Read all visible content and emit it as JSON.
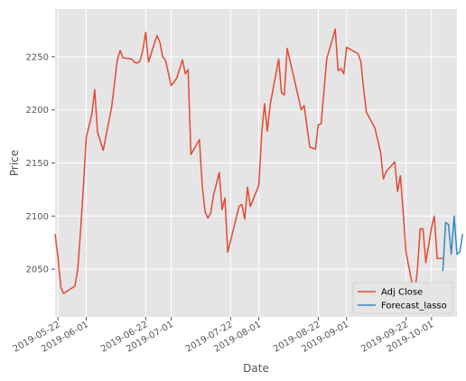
{
  "chart_data": {
    "type": "line",
    "title": "",
    "xlabel": "Date",
    "ylabel": "Price",
    "x_range": [
      "2019-05-21",
      "2019-10-10"
    ],
    "ylim": [
      2005,
      2295
    ],
    "grid": true,
    "legend_position": "lower-right",
    "x_ticks": [
      "2019-05-22",
      "2019-06-01",
      "2019-06-22",
      "2019-07-01",
      "2019-07-22",
      "2019-08-01",
      "2019-08-22",
      "2019-09-01",
      "2019-09-22",
      "2019-10-01"
    ],
    "y_ticks": [
      2050,
      2100,
      2150,
      2200,
      2250
    ],
    "series": [
      {
        "name": "Adj Close",
        "color": "#E24A33",
        "points": [
          [
            "2019-05-21",
            2083
          ],
          [
            "2019-05-22",
            2062
          ],
          [
            "2019-05-23",
            2033
          ],
          [
            "2019-05-24",
            2027
          ],
          [
            "2019-05-28",
            2034
          ],
          [
            "2019-05-29",
            2050
          ],
          [
            "2019-05-30",
            2086
          ],
          [
            "2019-05-31",
            2127
          ],
          [
            "2019-06-01",
            2174
          ],
          [
            "2019-06-03",
            2196
          ],
          [
            "2019-06-04",
            2219
          ],
          [
            "2019-06-05",
            2179
          ],
          [
            "2019-06-07",
            2162
          ],
          [
            "2019-06-10",
            2203
          ],
          [
            "2019-06-11",
            2225
          ],
          [
            "2019-06-12",
            2247
          ],
          [
            "2019-06-13",
            2256
          ],
          [
            "2019-06-14",
            2249
          ],
          [
            "2019-06-17",
            2248
          ],
          [
            "2019-06-18",
            2245
          ],
          [
            "2019-06-19",
            2244
          ],
          [
            "2019-06-20",
            2246
          ],
          [
            "2019-06-21",
            2256
          ],
          [
            "2019-06-22",
            2273
          ],
          [
            "2019-06-23",
            2245
          ],
          [
            "2019-06-26",
            2270
          ],
          [
            "2019-06-27",
            2264
          ],
          [
            "2019-06-28",
            2250
          ],
          [
            "2019-06-29",
            2247
          ],
          [
            "2019-07-01",
            2223
          ],
          [
            "2019-07-02",
            2226
          ],
          [
            "2019-07-03",
            2230
          ],
          [
            "2019-07-05",
            2247
          ],
          [
            "2019-07-06",
            2234
          ],
          [
            "2019-07-07",
            2238
          ],
          [
            "2019-07-08",
            2158
          ],
          [
            "2019-07-11",
            2172
          ],
          [
            "2019-07-12",
            2128
          ],
          [
            "2019-07-13",
            2104
          ],
          [
            "2019-07-14",
            2098
          ],
          [
            "2019-07-15",
            2103
          ],
          [
            "2019-07-16",
            2120
          ],
          [
            "2019-07-17",
            2130
          ],
          [
            "2019-07-18",
            2141
          ],
          [
            "2019-07-19",
            2106
          ],
          [
            "2019-07-20",
            2117
          ],
          [
            "2019-07-21",
            2066
          ],
          [
            "2019-07-25",
            2109
          ],
          [
            "2019-07-26",
            2111
          ],
          [
            "2019-07-27",
            2097
          ],
          [
            "2019-07-28",
            2127
          ],
          [
            "2019-07-29",
            2109
          ],
          [
            "2019-08-01",
            2129
          ],
          [
            "2019-08-02",
            2178
          ],
          [
            "2019-08-03",
            2206
          ],
          [
            "2019-08-04",
            2180
          ],
          [
            "2019-08-05",
            2205
          ],
          [
            "2019-08-08",
            2248
          ],
          [
            "2019-08-09",
            2216
          ],
          [
            "2019-08-10",
            2214
          ],
          [
            "2019-08-11",
            2258
          ],
          [
            "2019-08-16",
            2200
          ],
          [
            "2019-08-17",
            2204
          ],
          [
            "2019-08-19",
            2165
          ],
          [
            "2019-08-21",
            2163
          ],
          [
            "2019-08-22",
            2186
          ],
          [
            "2019-08-23",
            2187
          ],
          [
            "2019-08-25",
            2248
          ],
          [
            "2019-08-28",
            2276
          ],
          [
            "2019-08-29",
            2237
          ],
          [
            "2019-08-30",
            2239
          ],
          [
            "2019-08-31",
            2234
          ],
          [
            "2019-09-01",
            2259
          ],
          [
            "2019-09-05",
            2253
          ],
          [
            "2019-09-06",
            2246
          ],
          [
            "2019-09-07",
            2220
          ],
          [
            "2019-09-08",
            2198
          ],
          [
            "2019-09-11",
            2183
          ],
          [
            "2019-09-13",
            2160
          ],
          [
            "2019-09-14",
            2135
          ],
          [
            "2019-09-15",
            2142
          ],
          [
            "2019-09-18",
            2151
          ],
          [
            "2019-09-19",
            2123
          ],
          [
            "2019-09-20",
            2138
          ],
          [
            "2019-09-21",
            2103
          ],
          [
            "2019-09-22",
            2066
          ],
          [
            "2019-09-24",
            2038
          ],
          [
            "2019-09-25",
            2028
          ],
          [
            "2019-09-26",
            2048
          ],
          [
            "2019-09-27",
            2088
          ],
          [
            "2019-09-28",
            2088
          ],
          [
            "2019-09-29",
            2056
          ],
          [
            "2019-10-01",
            2089
          ],
          [
            "2019-10-02",
            2100
          ],
          [
            "2019-10-03",
            2060
          ],
          [
            "2019-10-04",
            2060
          ],
          [
            "2019-10-05",
            2060
          ]
        ]
      },
      {
        "name": "Forecast_lasso",
        "color": "#348ABD",
        "points": [
          [
            "2019-10-05",
            2048
          ],
          [
            "2019-10-06",
            2094
          ],
          [
            "2019-10-07",
            2092
          ],
          [
            "2019-10-08",
            2064
          ],
          [
            "2019-10-09",
            2100
          ],
          [
            "2019-10-10",
            2064
          ],
          [
            "2019-10-11",
            2066
          ],
          [
            "2019-10-12",
            2083
          ]
        ]
      }
    ]
  }
}
